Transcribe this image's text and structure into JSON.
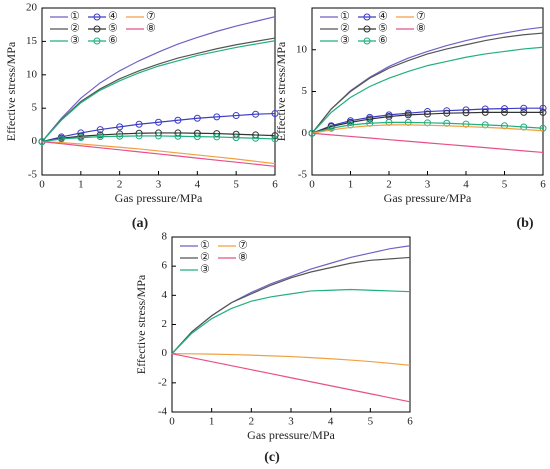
{
  "chart_data": [
    {
      "type": "line",
      "label": "(a)",
      "xlabel": "Gas pressure/MPa",
      "ylabel": "Effective stress/MPa",
      "x": [
        0,
        0.5,
        1,
        1.5,
        2,
        2.5,
        3,
        3.5,
        4,
        4.5,
        5,
        5.5,
        6
      ],
      "xlim": [
        0,
        6
      ],
      "xticks": [
        0,
        1,
        2,
        3,
        4,
        5,
        6
      ],
      "ylim": [
        -5,
        20
      ],
      "yticks": [
        -5,
        0,
        5,
        10,
        15,
        20
      ],
      "series": [
        {
          "name": "①",
          "color": "#6f62c4",
          "values": [
            0,
            3.5,
            6.5,
            8.8,
            10.6,
            12.1,
            13.4,
            14.6,
            15.6,
            16.5,
            17.3,
            18.0,
            18.7
          ]
        },
        {
          "name": "②",
          "color": "#555555",
          "values": [
            0,
            3.3,
            6.0,
            7.9,
            9.4,
            10.6,
            11.6,
            12.5,
            13.2,
            13.9,
            14.5,
            15.0,
            15.5
          ]
        },
        {
          "name": "③",
          "color": "#22b07c",
          "values": [
            0,
            3.2,
            5.8,
            7.7,
            9.1,
            10.3,
            11.3,
            12.1,
            12.9,
            13.5,
            14.1,
            14.6,
            15.1
          ]
        },
        {
          "name": "④",
          "color": "#3c3cc8",
          "marker": "o",
          "values": [
            0,
            0.7,
            1.3,
            1.8,
            2.2,
            2.6,
            2.9,
            3.2,
            3.5,
            3.7,
            3.9,
            4.1,
            4.2
          ]
        },
        {
          "name": "⑤",
          "color": "#333333",
          "marker": "o",
          "values": [
            0,
            0.5,
            0.8,
            1.0,
            1.15,
            1.25,
            1.3,
            1.3,
            1.25,
            1.2,
            1.1,
            1.0,
            0.9
          ]
        },
        {
          "name": "⑥",
          "color": "#1fae80",
          "marker": "o",
          "values": [
            0,
            0.4,
            0.6,
            0.75,
            0.8,
            0.85,
            0.85,
            0.8,
            0.75,
            0.7,
            0.6,
            0.5,
            0.4
          ]
        },
        {
          "name": "⑦",
          "color": "#f0a040",
          "values": [
            0,
            -0.15,
            -0.35,
            -0.6,
            -0.85,
            -1.1,
            -1.4,
            -1.7,
            -2.0,
            -2.3,
            -2.6,
            -2.95,
            -3.3
          ]
        },
        {
          "name": "⑧",
          "color": "#e8508a",
          "values": [
            0,
            -0.31,
            -0.62,
            -0.93,
            -1.23,
            -1.54,
            -1.85,
            -2.16,
            -2.47,
            -2.78,
            -3.08,
            -3.39,
            -3.7
          ]
        }
      ]
    },
    {
      "type": "line",
      "label": "(b)",
      "xlabel": "Gas pressure/MPa",
      "ylabel": "Effective stress/MPa",
      "x": [
        0,
        0.5,
        1,
        1.5,
        2,
        2.5,
        3,
        3.5,
        4,
        4.5,
        5,
        5.5,
        6
      ],
      "xlim": [
        0,
        6
      ],
      "xticks": [
        0,
        1,
        2,
        3,
        4,
        5,
        6
      ],
      "ylim": [
        -5,
        15
      ],
      "yticks": [
        -5,
        0,
        5,
        10
      ],
      "series": [
        {
          "name": "①",
          "color": "#6f62c4",
          "values": [
            0,
            2.9,
            5.1,
            6.7,
            8.0,
            9.0,
            9.8,
            10.5,
            11.1,
            11.6,
            12.0,
            12.4,
            12.7
          ]
        },
        {
          "name": "②",
          "color": "#555555",
          "values": [
            0,
            2.9,
            5.0,
            6.6,
            7.8,
            8.7,
            9.5,
            10.1,
            10.6,
            11.1,
            11.5,
            11.8,
            12.0
          ]
        },
        {
          "name": "③",
          "color": "#22b07c",
          "values": [
            0,
            2.5,
            4.3,
            5.6,
            6.6,
            7.4,
            8.1,
            8.6,
            9.1,
            9.5,
            9.8,
            10.1,
            10.3
          ]
        },
        {
          "name": "④",
          "color": "#3c3cc8",
          "marker": "o",
          "values": [
            0,
            0.9,
            1.5,
            1.9,
            2.2,
            2.4,
            2.6,
            2.7,
            2.8,
            2.9,
            2.95,
            3.0,
            3.0
          ]
        },
        {
          "name": "⑤",
          "color": "#333333",
          "marker": "o",
          "values": [
            0,
            0.8,
            1.3,
            1.7,
            2.0,
            2.2,
            2.3,
            2.4,
            2.45,
            2.5,
            2.5,
            2.5,
            2.5
          ]
        },
        {
          "name": "⑥",
          "color": "#1fae80",
          "marker": "o",
          "values": [
            0,
            0.6,
            1.0,
            1.2,
            1.3,
            1.3,
            1.25,
            1.2,
            1.1,
            1.0,
            0.9,
            0.75,
            0.6
          ]
        },
        {
          "name": "⑦",
          "color": "#f0a040",
          "values": [
            0,
            0.4,
            0.7,
            0.9,
            1.0,
            1.0,
            0.95,
            0.9,
            0.8,
            0.7,
            0.6,
            0.45,
            0.3
          ]
        },
        {
          "name": "⑧",
          "color": "#e8508a",
          "values": [
            0,
            -0.19,
            -0.38,
            -0.57,
            -0.77,
            -0.96,
            -1.15,
            -1.34,
            -1.53,
            -1.72,
            -1.92,
            -2.11,
            -2.3
          ]
        }
      ]
    },
    {
      "type": "line",
      "label": "(c)",
      "xlabel": "Gas pressure/MPa",
      "ylabel": "Effective stress/MPa",
      "x": [
        0,
        0.5,
        1,
        1.5,
        2,
        2.5,
        3,
        3.5,
        4,
        4.5,
        5,
        5.5,
        6
      ],
      "xlim": [
        0,
        6
      ],
      "xticks": [
        0,
        1,
        2,
        3,
        4,
        5,
        6
      ],
      "ylim": [
        -4,
        8
      ],
      "yticks": [
        -4,
        -2,
        0,
        2,
        4,
        6,
        8
      ],
      "series": [
        {
          "name": "①",
          "color": "#6f62c4",
          "values": [
            0,
            1.5,
            2.6,
            3.5,
            4.2,
            4.8,
            5.3,
            5.8,
            6.2,
            6.6,
            6.9,
            7.2,
            7.4
          ]
        },
        {
          "name": "②",
          "color": "#555555",
          "values": [
            0,
            1.5,
            2.6,
            3.5,
            4.1,
            4.7,
            5.2,
            5.6,
            5.9,
            6.2,
            6.4,
            6.5,
            6.6
          ]
        },
        {
          "name": "③",
          "color": "#22b07c",
          "values": [
            0,
            1.4,
            2.4,
            3.1,
            3.6,
            3.9,
            4.1,
            4.3,
            4.35,
            4.4,
            4.35,
            4.3,
            4.25
          ]
        },
        {
          "name": "⑦",
          "color": "#f0a040",
          "values": [
            0,
            -0.01,
            -0.03,
            -0.06,
            -0.1,
            -0.15,
            -0.2,
            -0.27,
            -0.35,
            -0.44,
            -0.54,
            -0.66,
            -0.8
          ]
        },
        {
          "name": "⑧",
          "color": "#e8508a",
          "values": [
            0,
            -0.275,
            -0.55,
            -0.825,
            -1.1,
            -1.375,
            -1.65,
            -1.925,
            -2.2,
            -2.475,
            -2.75,
            -3.025,
            -3.3
          ]
        }
      ]
    }
  ]
}
